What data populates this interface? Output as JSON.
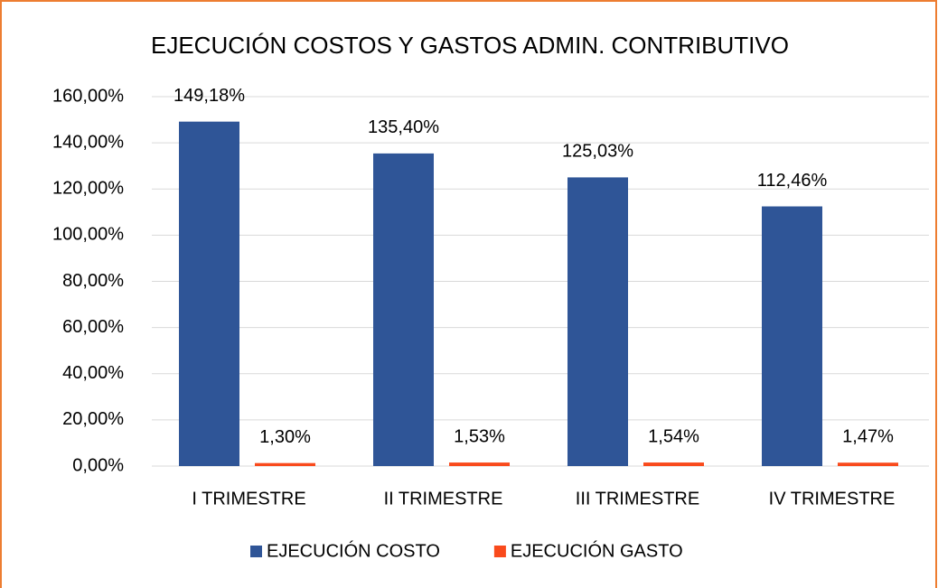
{
  "chart_data": {
    "type": "bar",
    "title": "EJECUCIÓN COSTOS Y GASTOS ADMIN. CONTRIBUTIVO",
    "categories": [
      "I TRIMESTRE",
      "II TRIMESTRE",
      "III TRIMESTRE",
      "IV TRIMESTRE"
    ],
    "series": [
      {
        "name": "EJECUCIÓN COSTO",
        "color": "#2f5597",
        "values": [
          149.18,
          135.4,
          125.03,
          112.46
        ],
        "value_labels": [
          "149,18%",
          "135,40%",
          "125,03%",
          "112,46%"
        ]
      },
      {
        "name": "EJECUCIÓN GASTO",
        "color": "#f94a1c",
        "values": [
          1.3,
          1.53,
          1.54,
          1.47
        ],
        "value_labels": [
          "1,30%",
          "1,53%",
          "1,54%",
          "1,47%"
        ]
      }
    ],
    "ylim": [
      0,
      160
    ],
    "yticks": [
      {
        "value": 0,
        "label": "0,00%"
      },
      {
        "value": 20,
        "label": "20,00%"
      },
      {
        "value": 40,
        "label": "40,00%"
      },
      {
        "value": 60,
        "label": "60,00%"
      },
      {
        "value": 80,
        "label": "80,00%"
      },
      {
        "value": 100,
        "label": "100,00%"
      },
      {
        "value": 120,
        "label": "120,00%"
      },
      {
        "value": 140,
        "label": "140,00%"
      },
      {
        "value": 160,
        "label": "160,00%"
      }
    ],
    "grid": true,
    "legend": "bottom"
  }
}
